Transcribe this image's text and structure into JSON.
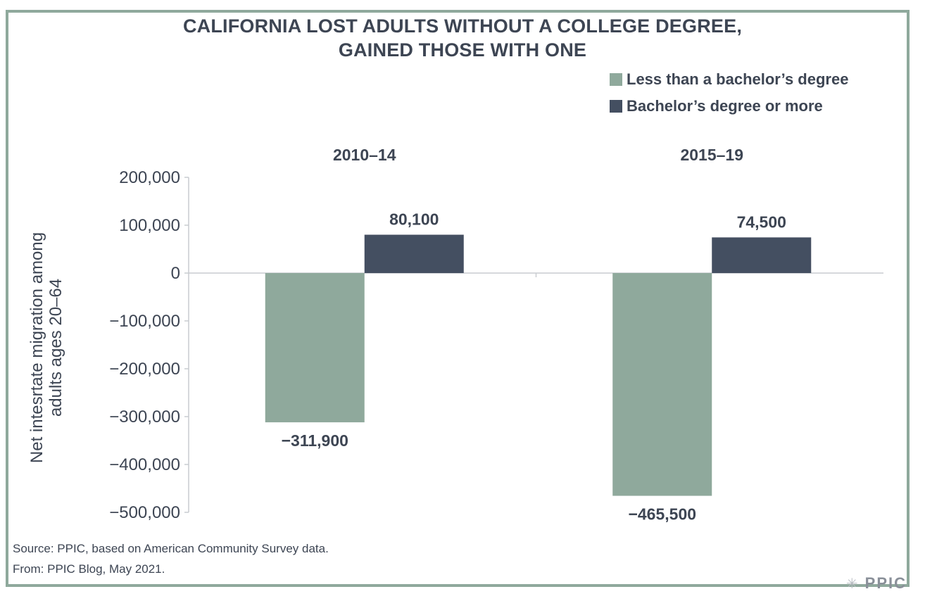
{
  "chart_data": {
    "type": "bar",
    "title_lines": [
      "CALIFORNIA LOST ADULTS WITHOUT A COLLEGE DEGREE,",
      "GAINED THOSE WITH ONE"
    ],
    "categories": [
      "2010–14",
      "2015–19"
    ],
    "series": [
      {
        "name": "Less than a bachelor’s degree",
        "color": "#8fa99c",
        "values": [
          -311900,
          -465500
        ],
        "labels": [
          "−311,900",
          "−465,500"
        ]
      },
      {
        "name": "Bachelor’s degree or more",
        "color": "#444f61",
        "values": [
          80100,
          74500
        ],
        "labels": [
          "80,100",
          "74,500"
        ]
      }
    ],
    "ylabel_lines": [
      "Net intesrtate migration among",
      "adults ages 20–64"
    ],
    "ylim": [
      -500000,
      200000
    ],
    "yticks": [
      200000,
      100000,
      0,
      -100000,
      -200000,
      -300000,
      -400000,
      -500000
    ],
    "ytick_labels": [
      "200,000",
      "100,000",
      "0",
      "−100,000",
      "−200,000",
      "−300,000",
      "−400,000",
      "−500,000"
    ],
    "grid": false,
    "legend_position": "top-right"
  },
  "footer": {
    "source": "Source: PPIC, based on American Community Survey data.",
    "from": "From: PPIC Blog, May 2021.",
    "logo_text": "PPIC",
    "logo_icon": "sunburst-icon"
  }
}
